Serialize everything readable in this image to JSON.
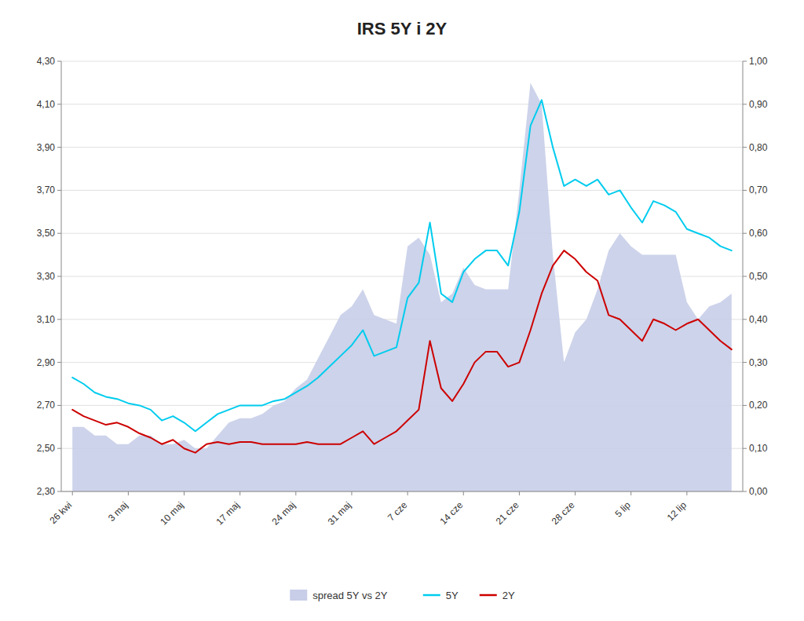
{
  "chart_data": {
    "type": "line",
    "title": "IRS 5Y i 2Y",
    "categories": [
      "26 kwi",
      null,
      null,
      null,
      null,
      "3 maj",
      null,
      null,
      null,
      null,
      "10 maj",
      null,
      null,
      null,
      null,
      "17 maj",
      null,
      null,
      null,
      null,
      "24 maj",
      null,
      null,
      null,
      null,
      "31 maj",
      null,
      null,
      null,
      null,
      "7 cze",
      null,
      null,
      null,
      null,
      "14 cze",
      null,
      null,
      null,
      null,
      "21 cze",
      null,
      null,
      null,
      null,
      "28 cze",
      null,
      null,
      null,
      null,
      "5 lip",
      null,
      null,
      null,
      null,
      "12 lip",
      null,
      null,
      null,
      null
    ],
    "series": [
      {
        "name": "spread 5Y vs 2Y",
        "type": "area",
        "axis": "y2",
        "color": "#C8CEE8",
        "values": [
          0.15,
          0.15,
          0.13,
          0.13,
          0.11,
          0.11,
          0.13,
          0.13,
          0.11,
          0.11,
          0.12,
          0.1,
          0.1,
          0.13,
          0.16,
          0.17,
          0.17,
          0.18,
          0.2,
          0.21,
          0.24,
          0.26,
          0.31,
          0.36,
          0.41,
          0.43,
          0.47,
          0.41,
          0.4,
          0.39,
          0.57,
          0.59,
          0.55,
          0.44,
          0.46,
          0.52,
          0.48,
          0.47,
          0.47,
          0.47,
          0.7,
          0.95,
          0.9,
          0.55,
          0.3,
          0.37,
          0.4,
          0.47,
          0.56,
          0.6,
          0.57,
          0.55,
          0.55,
          0.55,
          0.55,
          0.44,
          0.4,
          0.43,
          0.44,
          0.46
        ]
      },
      {
        "name": "5Y",
        "type": "line",
        "color": "#00CCEE",
        "values": [
          2.83,
          2.8,
          2.76,
          2.74,
          2.73,
          2.71,
          2.7,
          2.68,
          2.63,
          2.65,
          2.62,
          2.58,
          2.62,
          2.66,
          2.68,
          2.7,
          2.7,
          2.7,
          2.72,
          2.73,
          2.76,
          2.79,
          2.83,
          2.88,
          2.93,
          2.98,
          3.05,
          2.93,
          2.95,
          2.97,
          3.2,
          3.27,
          3.55,
          3.22,
          3.18,
          3.32,
          3.38,
          3.42,
          3.42,
          3.35,
          3.6,
          4.0,
          4.12,
          3.9,
          3.72,
          3.75,
          3.72,
          3.75,
          3.68,
          3.7,
          3.62,
          3.55,
          3.65,
          3.63,
          3.6,
          3.52,
          3.5,
          3.48,
          3.44,
          3.42
        ]
      },
      {
        "name": "2Y",
        "type": "line",
        "color": "#CC0000",
        "values": [
          2.68,
          2.65,
          2.63,
          2.61,
          2.62,
          2.6,
          2.57,
          2.55,
          2.52,
          2.54,
          2.5,
          2.48,
          2.52,
          2.53,
          2.52,
          2.53,
          2.53,
          2.52,
          2.52,
          2.52,
          2.52,
          2.53,
          2.52,
          2.52,
          2.52,
          2.55,
          2.58,
          2.52,
          2.55,
          2.58,
          2.63,
          2.68,
          3.0,
          2.78,
          2.72,
          2.8,
          2.9,
          2.95,
          2.95,
          2.88,
          2.9,
          3.05,
          3.22,
          3.35,
          3.42,
          3.38,
          3.32,
          3.28,
          3.12,
          3.1,
          3.05,
          3.0,
          3.1,
          3.08,
          3.05,
          3.08,
          3.1,
          3.05,
          3.0,
          2.96
        ]
      }
    ],
    "ylim": [
      2.3,
      4.3
    ],
    "yticks": [
      {
        "value": 2.3,
        "label": "2,30"
      },
      {
        "value": 2.5,
        "label": "2,50"
      },
      {
        "value": 2.7,
        "label": "2,70"
      },
      {
        "value": 2.9,
        "label": "2,90"
      },
      {
        "value": 3.1,
        "label": "3,10"
      },
      {
        "value": 3.3,
        "label": "3,30"
      },
      {
        "value": 3.5,
        "label": "3,50"
      },
      {
        "value": 3.7,
        "label": "3,70"
      },
      {
        "value": 3.9,
        "label": "3,90"
      },
      {
        "value": 4.1,
        "label": "4,10"
      },
      {
        "value": 4.3,
        "label": "4,30"
      }
    ],
    "y2lim": [
      0.0,
      1.0
    ],
    "y2ticks": [
      {
        "value": 0.0,
        "label": "0,00"
      },
      {
        "value": 0.1,
        "label": "0,10"
      },
      {
        "value": 0.2,
        "label": "0,20"
      },
      {
        "value": 0.3,
        "label": "0,30"
      },
      {
        "value": 0.4,
        "label": "0,40"
      },
      {
        "value": 0.5,
        "label": "0,50"
      },
      {
        "value": 0.6,
        "label": "0,60"
      },
      {
        "value": 0.7,
        "label": "0,70"
      },
      {
        "value": 0.8,
        "label": "0,80"
      },
      {
        "value": 0.9,
        "label": "0,90"
      },
      {
        "value": 1.0,
        "label": "1,00"
      }
    ],
    "grid": true,
    "legend": "bottom"
  }
}
